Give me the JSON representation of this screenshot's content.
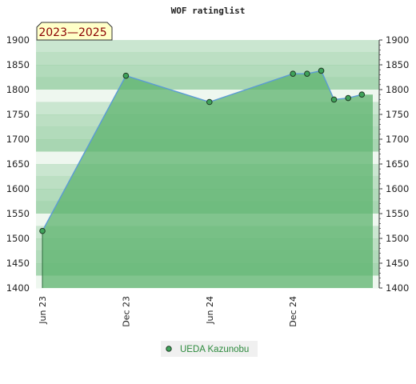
{
  "chart_data": {
    "type": "area",
    "title": "WOF ratinglist",
    "badge": "2023—2025",
    "ylim": [
      1400,
      1900
    ],
    "yticks": [
      1400,
      1450,
      1500,
      1550,
      1600,
      1650,
      1700,
      1750,
      1800,
      1850,
      1900
    ],
    "xticks": [
      {
        "label": "Jun 23",
        "date": "2023-06-01"
      },
      {
        "label": "Dec 23",
        "date": "2023-12-01"
      },
      {
        "label": "Jun 24",
        "date": "2024-06-01"
      },
      {
        "label": "Dec 24",
        "date": "2024-12-01"
      }
    ],
    "xlim": [
      "2023-06-01",
      "2025-05-25"
    ],
    "series": [
      {
        "name": "UEDA Kazunobu",
        "points": [
          {
            "x": "2023-06-01",
            "y": 1515
          },
          {
            "x": "2023-12-01",
            "y": 1828
          },
          {
            "x": "2024-06-01",
            "y": 1775
          },
          {
            "x": "2024-12-01",
            "y": 1832
          },
          {
            "x": "2025-01-01",
            "y": 1832
          },
          {
            "x": "2025-02-01",
            "y": 1838
          },
          {
            "x": "2025-03-01",
            "y": 1780
          },
          {
            "x": "2025-04-01",
            "y": 1783
          },
          {
            "x": "2025-05-01",
            "y": 1790
          }
        ]
      }
    ],
    "colors": {
      "fill": "#5cb36e",
      "line": "#5b9bd5",
      "marker": "#3fa35a",
      "band_dark": "#9fd2aa",
      "band_light": "#eef7ef",
      "badge_bg": "#ffffc8",
      "legend_bg": "#f0f0f0"
    },
    "legend": {
      "position": "bottom-center"
    },
    "grid": false
  }
}
